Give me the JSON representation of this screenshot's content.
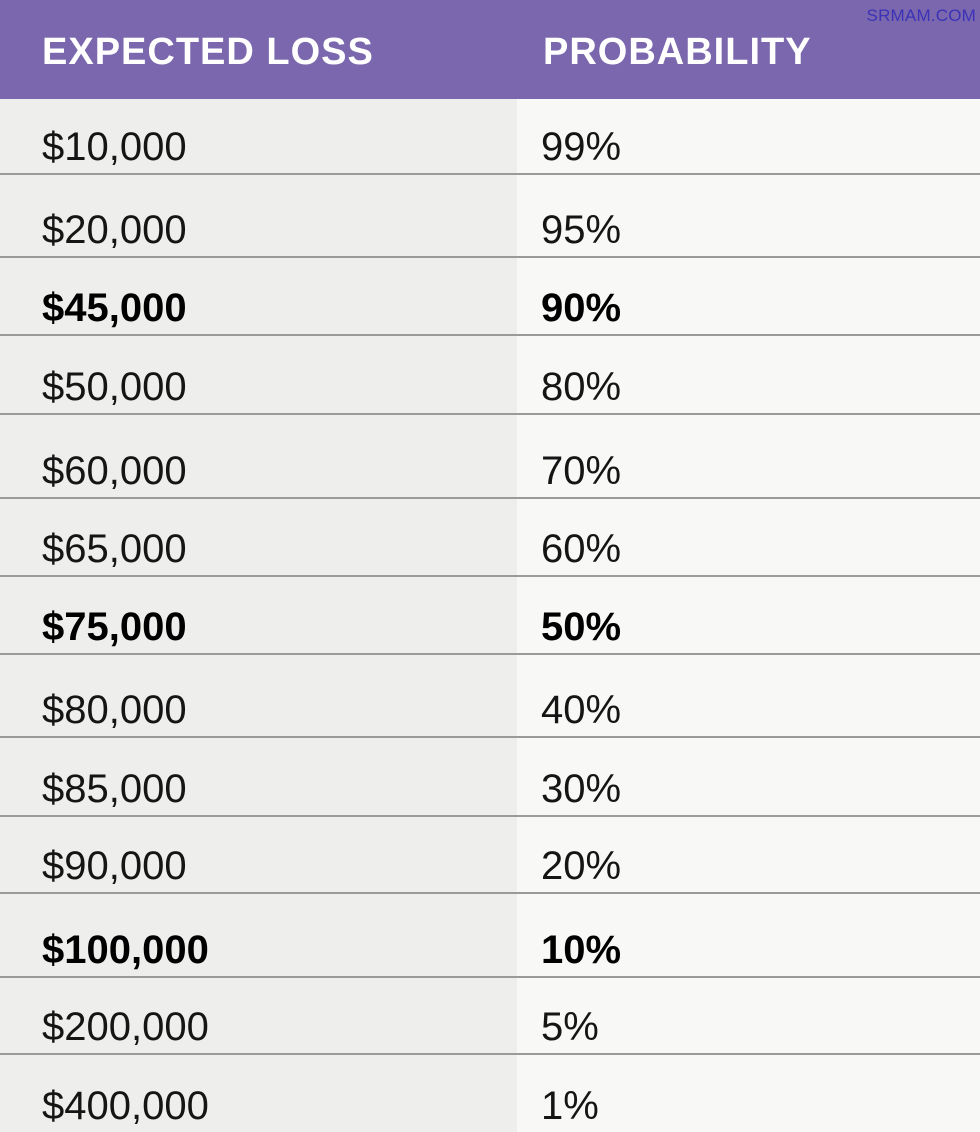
{
  "watermark": "SRMAM.COM",
  "header": {
    "loss_label": "EXPECTED LOSS",
    "prob_label": "PROBABILITY"
  },
  "rows": [
    {
      "loss": "$10,000",
      "probability": "99%",
      "bold": false
    },
    {
      "loss": "$20,000",
      "probability": "95%",
      "bold": false
    },
    {
      "loss": "$45,000",
      "probability": "90%",
      "bold": true
    },
    {
      "loss": "$50,000",
      "probability": "80%",
      "bold": false
    },
    {
      "loss": "$60,000",
      "probability": "70%",
      "bold": false
    },
    {
      "loss": "$65,000",
      "probability": "60%",
      "bold": false
    },
    {
      "loss": "$75,000",
      "probability": "50%",
      "bold": true
    },
    {
      "loss": "$80,000",
      "probability": "40%",
      "bold": false
    },
    {
      "loss": "$85,000",
      "probability": "30%",
      "bold": false
    },
    {
      "loss": "$90,000",
      "probability": "20%",
      "bold": false
    },
    {
      "loss": "$100,000",
      "probability": "10%",
      "bold": true
    },
    {
      "loss": "$200,000",
      "probability": "5%",
      "bold": false
    },
    {
      "loss": "$400,000",
      "probability": "1%",
      "bold": false
    }
  ]
}
